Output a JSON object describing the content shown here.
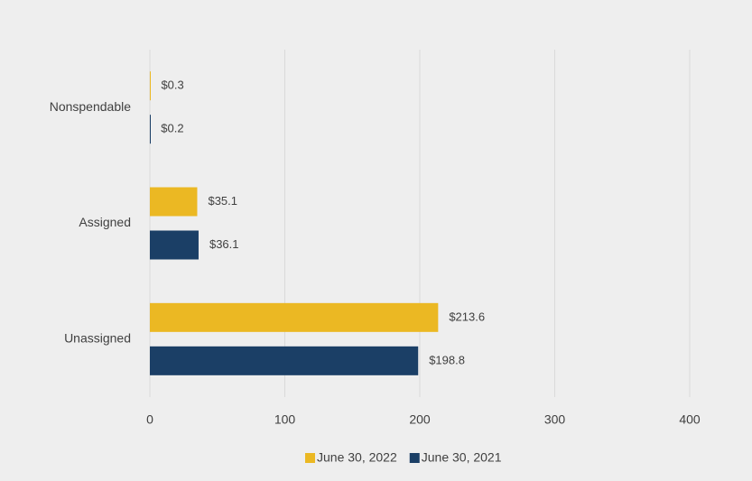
{
  "chart_data": {
    "type": "hbar",
    "categories": [
      "Nonspendable",
      "Assigned",
      "Unassigned"
    ],
    "series": [
      {
        "name": "June 30, 2022",
        "color": "#ebb823",
        "values": [
          0.3,
          35.1,
          213.6
        ],
        "value_labels": [
          "$0.3",
          "$35.1",
          "$213.6"
        ]
      },
      {
        "name": "June 30, 2021",
        "color": "#1b3f66",
        "values": [
          0.2,
          36.1,
          198.8
        ],
        "value_labels": [
          "$0.2",
          "$36.1",
          "$198.8"
        ]
      }
    ],
    "xlim": [
      0,
      400
    ],
    "xticks": [
      0,
      100,
      200,
      300,
      400
    ],
    "grid": true,
    "legend": "bottom"
  }
}
